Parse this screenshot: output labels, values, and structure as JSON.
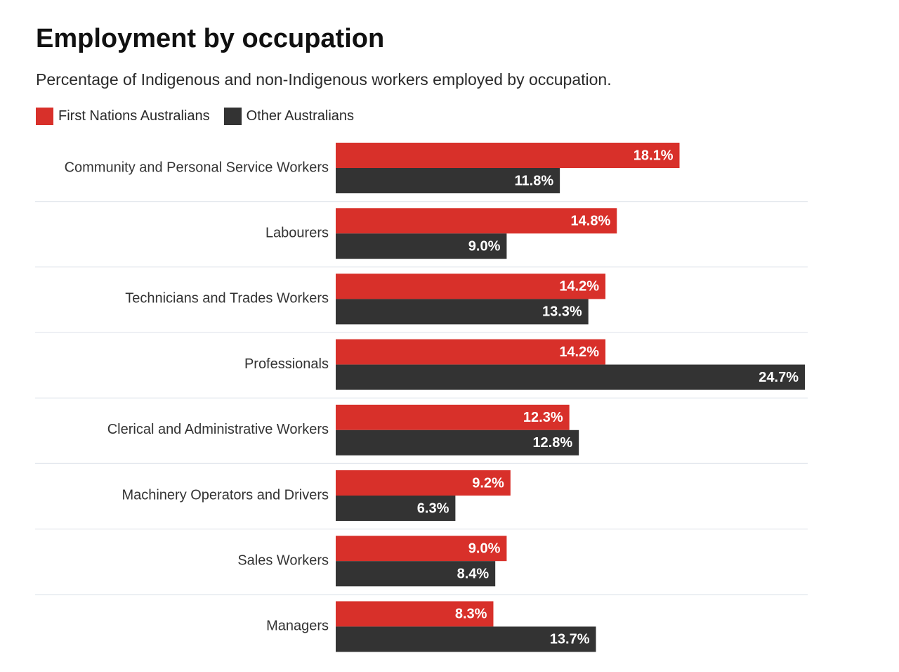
{
  "colors": {
    "first_nations": "#d8302a",
    "other": "#333333",
    "divider": "#e4e8ee",
    "value_text": "#ffffff",
    "category_text": "#333333"
  },
  "chart_data": {
    "type": "bar",
    "orientation": "horizontal",
    "title": "Employment by occupation",
    "subtitle": "Percentage of Indigenous and non-Indigenous workers employed by occupation.",
    "legend_placement": "top-left",
    "value_suffix": "%",
    "categories": [
      "Community and Personal Service Workers",
      "Labourers",
      "Technicians and Trades Workers",
      "Professionals",
      "Clerical and Administrative Workers",
      "Machinery Operators and Drivers",
      "Sales Workers",
      "Managers"
    ],
    "series": [
      {
        "name": "First Nations Australians",
        "color": "#d8302a",
        "values": [
          18.1,
          14.8,
          14.2,
          14.2,
          12.3,
          9.2,
          9.0,
          8.3
        ]
      },
      {
        "name": "Other Australians",
        "color": "#333333",
        "values": [
          11.8,
          9.0,
          13.3,
          24.7,
          12.8,
          6.3,
          8.4,
          13.7
        ]
      }
    ],
    "xlim": [
      0,
      24.7
    ],
    "grid": false
  }
}
